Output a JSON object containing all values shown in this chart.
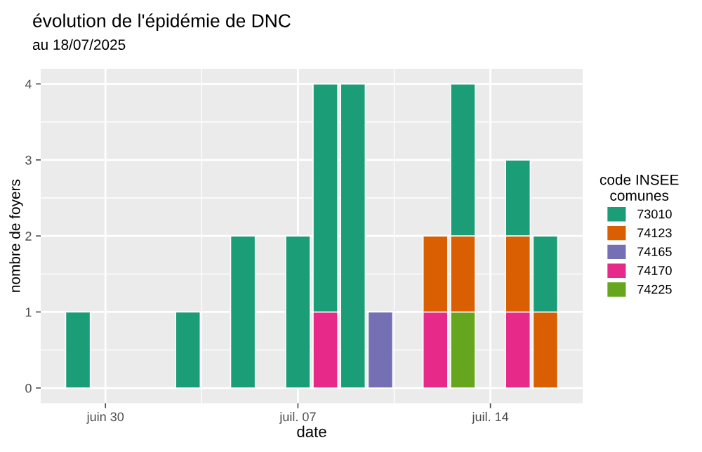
{
  "chart_data": {
    "type": "bar",
    "stacked": true,
    "title": "évolution de l'épidémie de DNC",
    "subtitle": "au 18/07/2025",
    "xlabel": "date",
    "ylabel": "nombre de foyers",
    "legend_title": "code INSEE\ncomunes",
    "x": [
      "2025-06-29",
      "2025-07-03",
      "2025-07-05",
      "2025-07-07",
      "2025-07-08",
      "2025-07-09",
      "2025-07-10",
      "2025-07-12",
      "2025-07-13",
      "2025-07-15",
      "2025-07-16"
    ],
    "series": [
      {
        "name": "74225",
        "color": "#66a61e",
        "values": [
          null,
          null,
          null,
          null,
          null,
          null,
          null,
          null,
          1,
          null,
          null
        ]
      },
      {
        "name": "74170",
        "color": "#e7298a",
        "values": [
          null,
          null,
          null,
          null,
          1,
          null,
          null,
          1,
          null,
          1,
          null
        ]
      },
      {
        "name": "74165",
        "color": "#7570b3",
        "values": [
          null,
          null,
          null,
          null,
          null,
          null,
          1,
          null,
          null,
          null,
          null
        ]
      },
      {
        "name": "74123",
        "color": "#d95f02",
        "values": [
          null,
          null,
          null,
          null,
          null,
          null,
          null,
          1,
          1,
          1,
          1
        ]
      },
      {
        "name": "73010",
        "color": "#1b9e77",
        "values": [
          1,
          1,
          2,
          2,
          3,
          4,
          null,
          null,
          2,
          1,
          1
        ]
      }
    ],
    "xlim": [
      "2025-06-27T15:30",
      "2025-07-17T08:30"
    ],
    "xticks": [
      {
        "value": "2025-06-30",
        "label": "juin 30"
      },
      {
        "value": "2025-07-07",
        "label": "juil. 07"
      },
      {
        "value": "2025-07-14",
        "label": "juil. 14"
      }
    ],
    "ylim": [
      -0.2,
      4.2
    ],
    "yticks": [
      0,
      1,
      2,
      3,
      4
    ],
    "grid": true,
    "legend": "right"
  }
}
